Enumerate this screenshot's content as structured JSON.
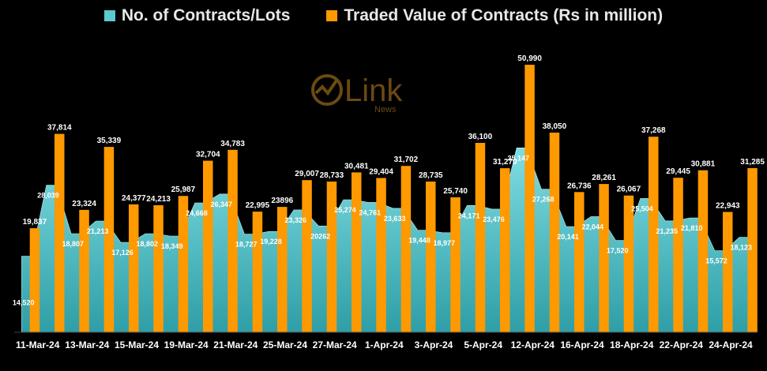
{
  "chart_data": {
    "type": "bar",
    "legend_position": "top",
    "grid": false,
    "ylim": [
      0,
      54000
    ],
    "series": [
      {
        "name": "No. of Contracts/Lots",
        "type": "area",
        "color": "#5cc9cf",
        "values": [
          14520,
          28039,
          18807,
          21213,
          17126,
          18802,
          18349,
          24668,
          26347,
          18727,
          19228,
          23326,
          20262,
          25274,
          24761,
          23633,
          19448,
          18977,
          24171,
          23476,
          35147,
          27268,
          20141,
          22044,
          17520,
          25504,
          21235,
          21810,
          15572,
          18123
        ],
        "labels": [
          "14,520",
          "28,039",
          "18,807",
          "21,213",
          "17,126",
          "18,802",
          "18,349",
          "24,668",
          "26,347",
          "18,727",
          "19,228",
          "23,326",
          "20262",
          "25,274",
          "24,761",
          "23,633",
          "19,448",
          "18,977",
          "24,171",
          "23,476",
          "35,147",
          "27,268",
          "20,141",
          "22,044",
          "17,520",
          "25,504",
          "21,235",
          "21,810",
          "15,572",
          "18,123"
        ]
      },
      {
        "name": "Traded Value of Contracts (Rs in million)",
        "type": "bar",
        "color": "#ff9900",
        "values": [
          19837,
          37814,
          23324,
          35339,
          24377,
          24213,
          25987,
          32704,
          34783,
          22995,
          23896,
          29007,
          28733,
          30481,
          29404,
          31702,
          28735,
          25740,
          36100,
          31270,
          50990,
          38050,
          26736,
          28261,
          26067,
          37268,
          29445,
          30881,
          22943,
          31285
        ],
        "labels": [
          "19,837",
          "37,814",
          "23,324",
          "35,339",
          "24,377",
          "24,213",
          "25,987",
          "32,704",
          "34,783",
          "22,995",
          "23896",
          "29,007",
          "28,733",
          "30,481",
          "29,404",
          "31,702",
          "28,735",
          "25,740",
          "36,100",
          "31,270",
          "50,990",
          "38,050",
          "26,736",
          "28,261",
          "26,067",
          "37,268",
          "29,445",
          "30,881",
          "22,943",
          "31,285"
        ]
      }
    ],
    "x_tick_labels": [
      "11-Mar-24",
      "13-Mar-24",
      "15-Mar-24",
      "19-Mar-24",
      "21-Mar-24",
      "25-Mar-24",
      "27-Mar-24",
      "1-Apr-24",
      "3-Apr-24",
      "5-Apr-24",
      "12-Apr-24",
      "16-Apr-24",
      "18-Apr-24",
      "22-Apr-24",
      "24-Apr-24"
    ],
    "x_tick_every": 2
  },
  "logo": {
    "main": "Link",
    "sub": "News"
  }
}
